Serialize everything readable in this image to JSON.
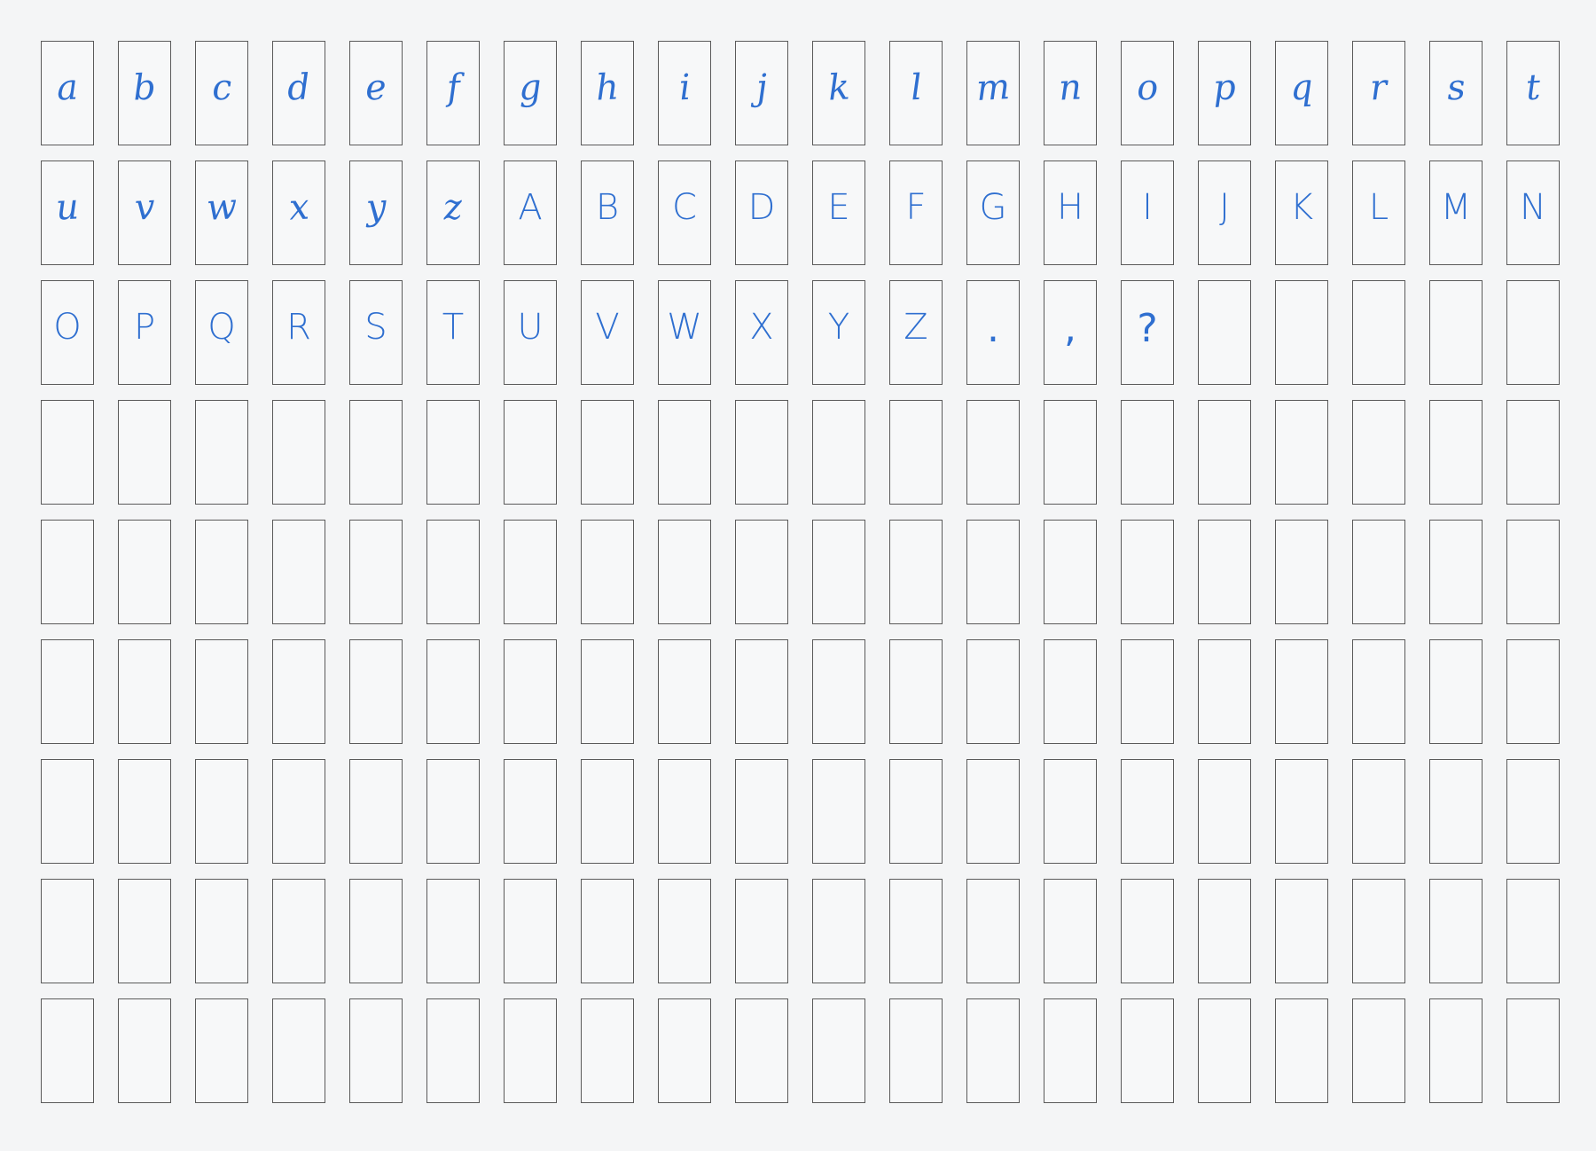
{
  "sheet": {
    "rows": 9,
    "columns": 20,
    "ink_color": "#2f6fd0",
    "border_color": "#5a5a5a",
    "characters": [
      "a",
      "b",
      "c",
      "d",
      "e",
      "f",
      "g",
      "h",
      "i",
      "j",
      "k",
      "l",
      "m",
      "n",
      "o",
      "p",
      "q",
      "r",
      "s",
      "t",
      "u",
      "v",
      "w",
      "x",
      "y",
      "z",
      "A",
      "B",
      "C",
      "D",
      "E",
      "F",
      "G",
      "H",
      "I",
      "J",
      "K",
      "L",
      "M",
      "N",
      "O",
      "P",
      "Q",
      "R",
      "S",
      "T",
      "U",
      "V",
      "W",
      "X",
      "Y",
      "Z",
      ".",
      ",",
      "?"
    ]
  }
}
